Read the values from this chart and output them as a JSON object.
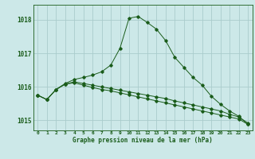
{
  "title": "Graphe pression niveau de la mer (hPa)",
  "background_color": "#cce8e8",
  "grid_color": "#aacccc",
  "line_color": "#1a5c1a",
  "x_labels": [
    "0",
    "1",
    "2",
    "3",
    "4",
    "5",
    "6",
    "7",
    "8",
    "9",
    "10",
    "11",
    "12",
    "13",
    "14",
    "15",
    "16",
    "17",
    "18",
    "19",
    "20",
    "21",
    "22",
    "23"
  ],
  "ylim": [
    1014.7,
    1018.45
  ],
  "yticks": [
    1015,
    1016,
    1017,
    1018
  ],
  "line1": [
    1015.75,
    1015.62,
    1015.92,
    1016.08,
    1016.12,
    1016.05,
    1015.98,
    1015.92,
    1015.88,
    1015.82,
    1015.76,
    1015.7,
    1015.64,
    1015.58,
    1015.52,
    1015.46,
    1015.4,
    1015.34,
    1015.28,
    1015.22,
    1015.16,
    1015.1,
    1015.04,
    1014.88
  ],
  "line2": [
    1015.75,
    1015.62,
    1015.92,
    1016.08,
    1016.15,
    1016.1,
    1016.05,
    1016.0,
    1015.95,
    1015.9,
    1015.85,
    1015.8,
    1015.75,
    1015.7,
    1015.65,
    1015.58,
    1015.52,
    1015.46,
    1015.4,
    1015.34,
    1015.28,
    1015.18,
    1015.1,
    1014.92
  ],
  "line3": [
    1015.75,
    1015.62,
    1015.92,
    1016.1,
    1016.22,
    1016.28,
    1016.35,
    1016.45,
    1016.65,
    1017.15,
    1018.05,
    1018.1,
    1017.92,
    1017.72,
    1017.38,
    1016.88,
    1016.58,
    1016.28,
    1016.05,
    1015.72,
    1015.48,
    1015.28,
    1015.12,
    1014.88
  ]
}
